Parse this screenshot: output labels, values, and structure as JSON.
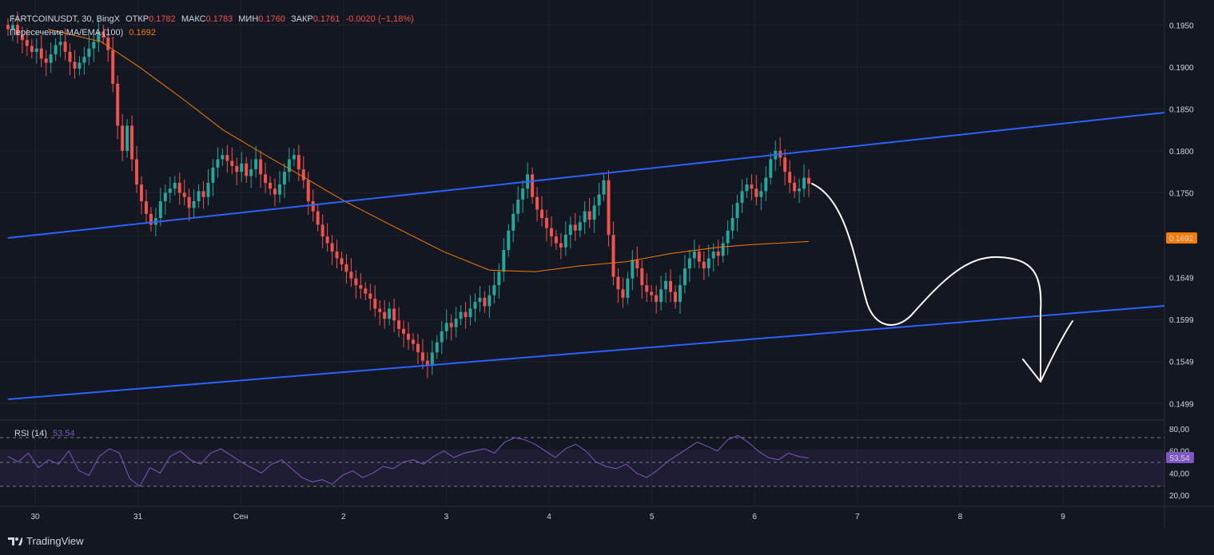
{
  "legend": {
    "symbol": "FARTCOINUSDT",
    "interval": "30",
    "exchange": "BingX",
    "open_label": "ОТКР",
    "open_value": "0.1782",
    "high_label": "МАКС",
    "high_value": "0.1783",
    "low_label": "МИН",
    "low_value": "0.1760",
    "close_label": "ЗАКР",
    "close_value": "0.1761",
    "change": "-0.0020 (−1,18%)",
    "indicator_name": "Пересечение MA/EMA (100)",
    "indicator_value": "0.1692"
  },
  "rsi": {
    "name": "RSI (14)",
    "value": "53.54",
    "badge": "53,54"
  },
  "price_axis": {
    "ticks": [
      "0.1950",
      "0.1900",
      "0.1850",
      "0.1800",
      "0.1750",
      "0.1699",
      "0.1649",
      "0.1599",
      "0.1549",
      "0.1499"
    ],
    "ma_badge": "0.1692"
  },
  "rsi_axis": {
    "ticks": [
      "80,00",
      "60,00",
      "40,00",
      "20,00"
    ]
  },
  "time_axis": {
    "ticks": [
      "30",
      "31",
      "Сен",
      "2",
      "3",
      "4",
      "5",
      "6",
      "7",
      "8",
      "9"
    ]
  },
  "branding": {
    "name": "TradingView"
  },
  "colors": {
    "background": "#131722",
    "up": "#26a69a",
    "down": "#ef5350",
    "ma_line": "#f57c00",
    "channel": "#2962ff",
    "rsi_line": "#7e57c2",
    "annotation": "#ffffff"
  },
  "chart_data": {
    "type": "candlestick",
    "price_range": [
      0.1485,
      0.1975
    ],
    "rsi_range": [
      10,
      85
    ],
    "candles_close": [
      0.1945,
      0.195,
      0.1938,
      0.1932,
      0.1925,
      0.1918,
      0.1922,
      0.191,
      0.1905,
      0.1915,
      0.1926,
      0.193,
      0.1918,
      0.1906,
      0.1898,
      0.1905,
      0.1912,
      0.1922,
      0.193,
      0.1942,
      0.1935,
      0.192,
      0.188,
      0.183,
      0.18,
      0.183,
      0.179,
      0.176,
      0.174,
      0.1725,
      0.1712,
      0.172,
      0.174,
      0.175,
      0.1755,
      0.1762,
      0.175,
      0.1745,
      0.1732,
      0.174,
      0.1752,
      0.1745,
      0.1762,
      0.178,
      0.179,
      0.1795,
      0.1788,
      0.1782,
      0.1775,
      0.1785,
      0.177,
      0.1778,
      0.179,
      0.1772,
      0.1762,
      0.1755,
      0.1748,
      0.176,
      0.1775,
      0.179,
      0.1795,
      0.1778,
      0.1765,
      0.174,
      0.1728,
      0.1712,
      0.1698,
      0.169,
      0.168,
      0.1672,
      0.1665,
      0.1656,
      0.1648,
      0.164,
      0.1636,
      0.163,
      0.1624,
      0.1612,
      0.1608,
      0.16,
      0.1612,
      0.1598,
      0.1588,
      0.1582,
      0.1575,
      0.157,
      0.156,
      0.155,
      0.1545,
      0.156,
      0.1572,
      0.1585,
      0.1595,
      0.159,
      0.16,
      0.1608,
      0.1602,
      0.1612,
      0.162,
      0.1625,
      0.1615,
      0.1628,
      0.164,
      0.1656,
      0.1682,
      0.1705,
      0.1725,
      0.1742,
      0.1755,
      0.1772,
      0.1745,
      0.173,
      0.172,
      0.1708,
      0.1698,
      0.169,
      0.1685,
      0.17,
      0.1712,
      0.1705,
      0.1715,
      0.1728,
      0.1718,
      0.1735,
      0.1748,
      0.1765,
      0.17,
      0.165,
      0.1635,
      0.1625,
      0.1648,
      0.167,
      0.166,
      0.164,
      0.1632,
      0.1628,
      0.162,
      0.1635,
      0.1645,
      0.1632,
      0.162,
      0.164,
      0.166,
      0.1672,
      0.168,
      0.1668,
      0.166,
      0.1672,
      0.168,
      0.1675,
      0.169,
      0.1705,
      0.172,
      0.1738,
      0.1752,
      0.176,
      0.1755,
      0.1745,
      0.1752,
      0.1768,
      0.179,
      0.18,
      0.1792,
      0.1775,
      0.1762,
      0.1752,
      0.1755,
      0.1768,
      0.1761
    ],
    "ma": [
      [
        0.1945,
        0
      ],
      [
        0.193,
        0.07
      ],
      [
        0.19,
        0.12
      ],
      [
        0.186,
        0.18
      ],
      [
        0.1825,
        0.23
      ],
      [
        0.1798,
        0.28
      ],
      [
        0.1772,
        0.33
      ],
      [
        0.174,
        0.39
      ],
      [
        0.1712,
        0.45
      ],
      [
        0.168,
        0.52
      ],
      [
        0.1658,
        0.58
      ],
      [
        0.1656,
        0.64
      ],
      [
        0.1663,
        0.7
      ],
      [
        0.1668,
        0.76
      ],
      [
        0.1678,
        0.82
      ],
      [
        0.1685,
        0.88
      ],
      [
        0.1688,
        0.92
      ],
      [
        0.1692,
        1
      ]
    ],
    "rsi": [
      55,
      50,
      58,
      45,
      52,
      48,
      60,
      42,
      38,
      55,
      62,
      58,
      35,
      28,
      45,
      40,
      55,
      60,
      52,
      48,
      58,
      62,
      56,
      50,
      45,
      40,
      48,
      52,
      44,
      36,
      32,
      34,
      30,
      38,
      42,
      36,
      40,
      46,
      44,
      50,
      52,
      48,
      55,
      60,
      54,
      58,
      60,
      62,
      58,
      68,
      72,
      70,
      66,
      60,
      54,
      62,
      66,
      60,
      50,
      46,
      44,
      48,
      40,
      36,
      42,
      50,
      56,
      62,
      68,
      64,
      60,
      70,
      74,
      68,
      60,
      54,
      52,
      58,
      55,
      53.54
    ]
  }
}
